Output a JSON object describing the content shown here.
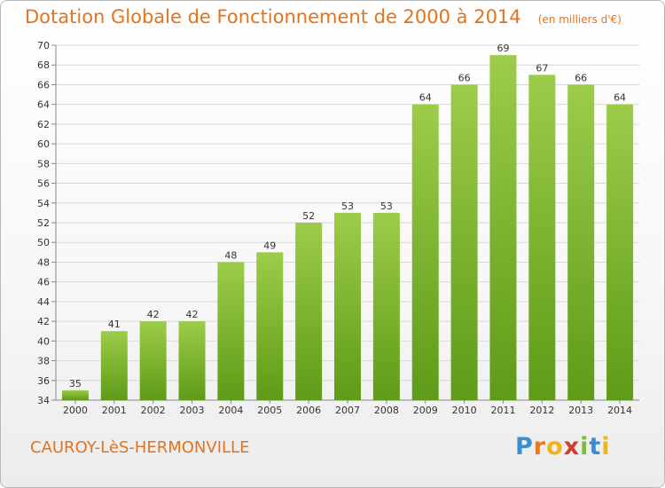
{
  "chart_data": {
    "type": "bar",
    "title": "Dotation Globale de Fonctionnement de 2000 à 2014",
    "unit": "(en milliers d'€)",
    "categories": [
      "2000",
      "2001",
      "2002",
      "2003",
      "2004",
      "2005",
      "2006",
      "2007",
      "2008",
      "2009",
      "2010",
      "2011",
      "2012",
      "2013",
      "2014"
    ],
    "values": [
      35,
      41,
      42,
      42,
      48,
      49,
      52,
      53,
      53,
      64,
      66,
      69,
      67,
      66,
      64
    ],
    "ylim": [
      34,
      70
    ],
    "ytick_step": 2,
    "grid": true,
    "bar_color_top": "#9ccc4a",
    "bar_color_bottom": "#5e9b18"
  },
  "commune_name": "CAUROY-LèS-HERMONVILLE",
  "logo": {
    "text": "Proxiti",
    "letters": [
      {
        "char": "P",
        "color": "#3a8fd2"
      },
      {
        "char": "r",
        "color": "#e8792a"
      },
      {
        "char": "o",
        "color": "#f0b21e"
      },
      {
        "char": "x",
        "color": "#d93a2e"
      },
      {
        "char": "i",
        "color": "#7db940"
      },
      {
        "char": "t",
        "color": "#3a8fd2"
      },
      {
        "char": "i",
        "color": "#f0b21e"
      }
    ]
  },
  "colors": {
    "accent": "#e2731f",
    "gridline": "#d8d8d8",
    "axis": "#888888",
    "label_text": "#333333"
  }
}
